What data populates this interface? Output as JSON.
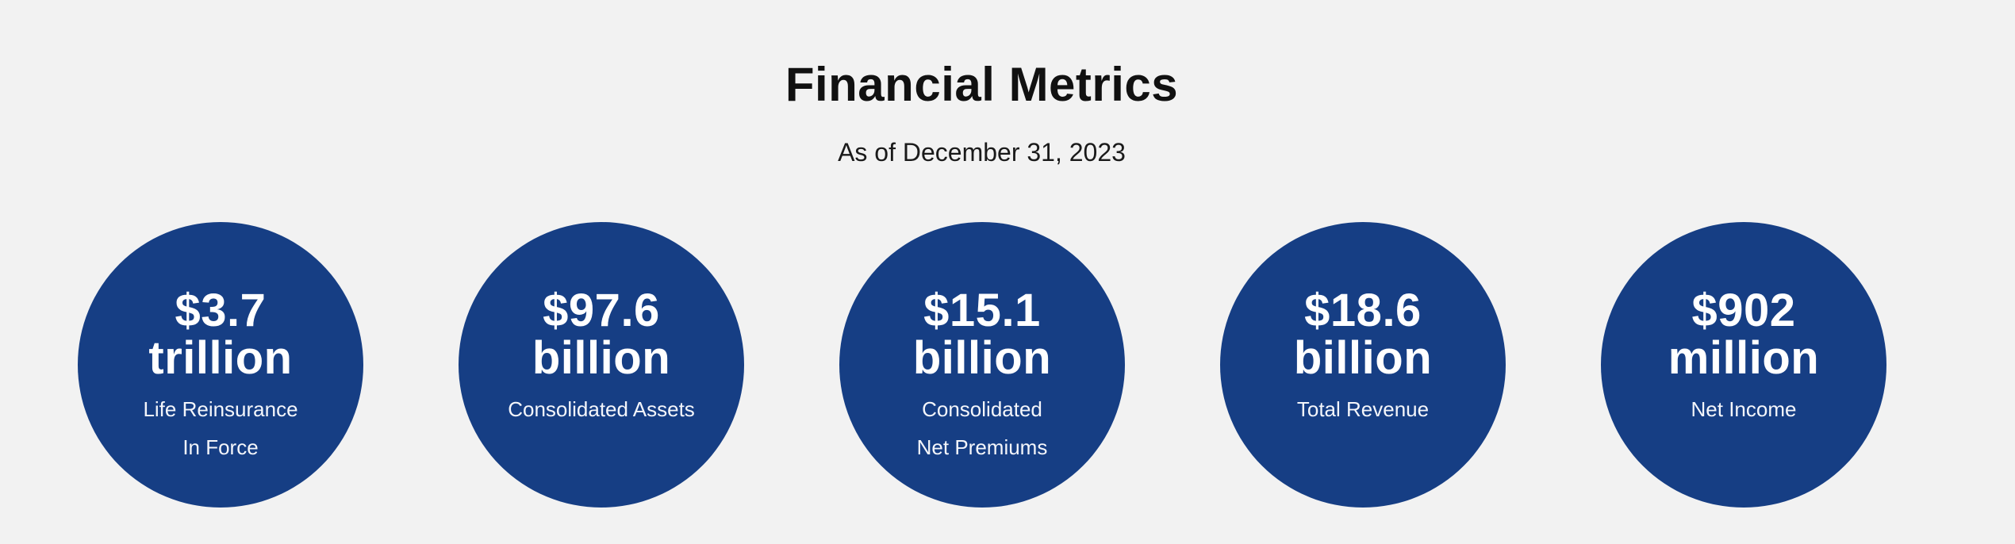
{
  "page": {
    "title": "Financial Metrics",
    "subtitle": "As of December 31, 2023"
  },
  "metrics": [
    {
      "value_line1": "$3.7",
      "value_line2": "trillion",
      "label_line1": "Life Reinsurance",
      "label_line2": "In Force"
    },
    {
      "value_line1": "$97.6",
      "value_line2": "billion",
      "label_line1": "Consolidated Assets",
      "label_line2": ""
    },
    {
      "value_line1": "$15.1",
      "value_line2": "billion",
      "label_line1": "Consolidated",
      "label_line2": "Net Premiums"
    },
    {
      "value_line1": "$18.6",
      "value_line2": "billion",
      "label_line1": "Total Revenue",
      "label_line2": ""
    },
    {
      "value_line1": "$902",
      "value_line2": "million",
      "label_line1": "Net Income",
      "label_line2": ""
    }
  ],
  "colors": {
    "background": "#f2f2f2",
    "circle": "#163e84",
    "text_on_circle": "#ffffff"
  }
}
